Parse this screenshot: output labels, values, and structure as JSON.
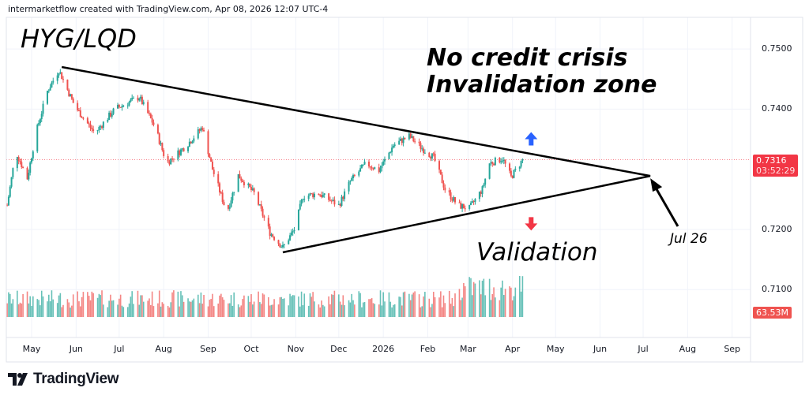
{
  "header": {
    "attribution": "intermarketflow created with TradingView.com, Apr 08, 2026 12:07 UTC-4"
  },
  "footer": {
    "brand": "TradingView"
  },
  "annotations": {
    "symbol": "HYG/LQD",
    "line1": "No credit crisis",
    "line2": "Invalidation zone",
    "validation": "Validation",
    "apex_date": "Jul 26"
  },
  "colors": {
    "up": "#26a69a",
    "down": "#ef5350",
    "up_arrow": "#2962ff",
    "down_arrow": "#f23645",
    "price_tag": "#f23645"
  },
  "chart_data": {
    "type": "candlestick",
    "title": "HYG/LQD",
    "ylim": [
      0.7045,
      0.7525
    ],
    "y_ticks": [
      "0.7500",
      "0.7400",
      "0.7200",
      "0.7100"
    ],
    "y_tick_values": [
      0.75,
      0.74,
      0.72,
      0.71
    ],
    "x_range": [
      "2025-04-10",
      "2026-09-18"
    ],
    "x_ticks": [
      {
        "label": "May",
        "date": "2025-05-01"
      },
      {
        "label": "Jun",
        "date": "2025-06-01"
      },
      {
        "label": "Jul",
        "date": "2025-07-01"
      },
      {
        "label": "Aug",
        "date": "2025-08-01"
      },
      {
        "label": "Sep",
        "date": "2025-09-01"
      },
      {
        "label": "Oct",
        "date": "2025-10-01"
      },
      {
        "label": "Nov",
        "date": "2025-11-01"
      },
      {
        "label": "Dec",
        "date": "2025-12-01"
      },
      {
        "label": "2026",
        "date": "2026-01-01"
      },
      {
        "label": "Feb",
        "date": "2026-02-01"
      },
      {
        "label": "Mar",
        "date": "2026-03-01"
      },
      {
        "label": "Apr",
        "date": "2026-04-01"
      },
      {
        "label": "May",
        "date": "2026-05-01"
      },
      {
        "label": "Jun",
        "date": "2026-06-01"
      },
      {
        "label": "Jul",
        "date": "2026-07-01"
      },
      {
        "label": "Aug",
        "date": "2026-08-01"
      },
      {
        "label": "Sep",
        "date": "2026-09-01"
      }
    ],
    "close_path": [
      [
        "2025-04-14",
        0.724
      ],
      [
        "2025-04-20",
        0.733
      ],
      [
        "2025-04-28",
        0.7285
      ],
      [
        "2025-05-04",
        0.736
      ],
      [
        "2025-05-12",
        0.743
      ],
      [
        "2025-05-20",
        0.7465
      ],
      [
        "2025-05-31",
        0.7405
      ],
      [
        "2025-06-14",
        0.736
      ],
      [
        "2025-06-28",
        0.74
      ],
      [
        "2025-07-15",
        0.742
      ],
      [
        "2025-07-26",
        0.737
      ],
      [
        "2025-08-03",
        0.731
      ],
      [
        "2025-08-17",
        0.734
      ],
      [
        "2025-08-28",
        0.737
      ],
      [
        "2025-09-04",
        0.73
      ],
      [
        "2025-09-14",
        0.7228
      ],
      [
        "2025-09-22",
        0.729
      ],
      [
        "2025-10-03",
        0.726
      ],
      [
        "2025-10-14",
        0.7195
      ],
      [
        "2025-10-23",
        0.717
      ],
      [
        "2025-10-31",
        0.72
      ],
      [
        "2025-11-06",
        0.7255
      ],
      [
        "2025-11-17",
        0.726
      ],
      [
        "2025-12-01",
        0.724
      ],
      [
        "2025-12-09",
        0.728
      ],
      [
        "2025-12-20",
        0.731
      ],
      [
        "2025-12-29",
        0.7298
      ],
      [
        "2026-01-08",
        0.734
      ],
      [
        "2026-01-19",
        0.7355
      ],
      [
        "2026-01-28",
        0.7335
      ],
      [
        "2026-02-05",
        0.732
      ],
      [
        "2026-02-13",
        0.7267
      ],
      [
        "2026-02-22",
        0.724
      ],
      [
        "2026-03-02",
        0.7235
      ],
      [
        "2026-03-11",
        0.7267
      ],
      [
        "2026-03-16",
        0.731
      ],
      [
        "2026-03-25",
        0.7318
      ],
      [
        "2026-03-31",
        0.7287
      ],
      [
        "2026-04-08",
        0.7316
      ]
    ],
    "last_price": "0.7316",
    "countdown": "03:52:29",
    "last_volume": "63.53M",
    "trendlines": [
      {
        "name": "upper",
        "from": [
          "2025-05-22",
          0.747
        ],
        "to": [
          "2026-07-06",
          0.7289
        ]
      },
      {
        "name": "lower",
        "from": [
          "2025-10-23",
          0.7162
        ],
        "to": [
          "2026-07-06",
          0.7289
        ]
      }
    ],
    "arrows": [
      {
        "name": "breakout-up",
        "date": "2026-04-14",
        "price": 0.735,
        "direction": "up"
      },
      {
        "name": "breakdown-down",
        "date": "2026-04-14",
        "price": 0.721,
        "direction": "down"
      }
    ]
  }
}
